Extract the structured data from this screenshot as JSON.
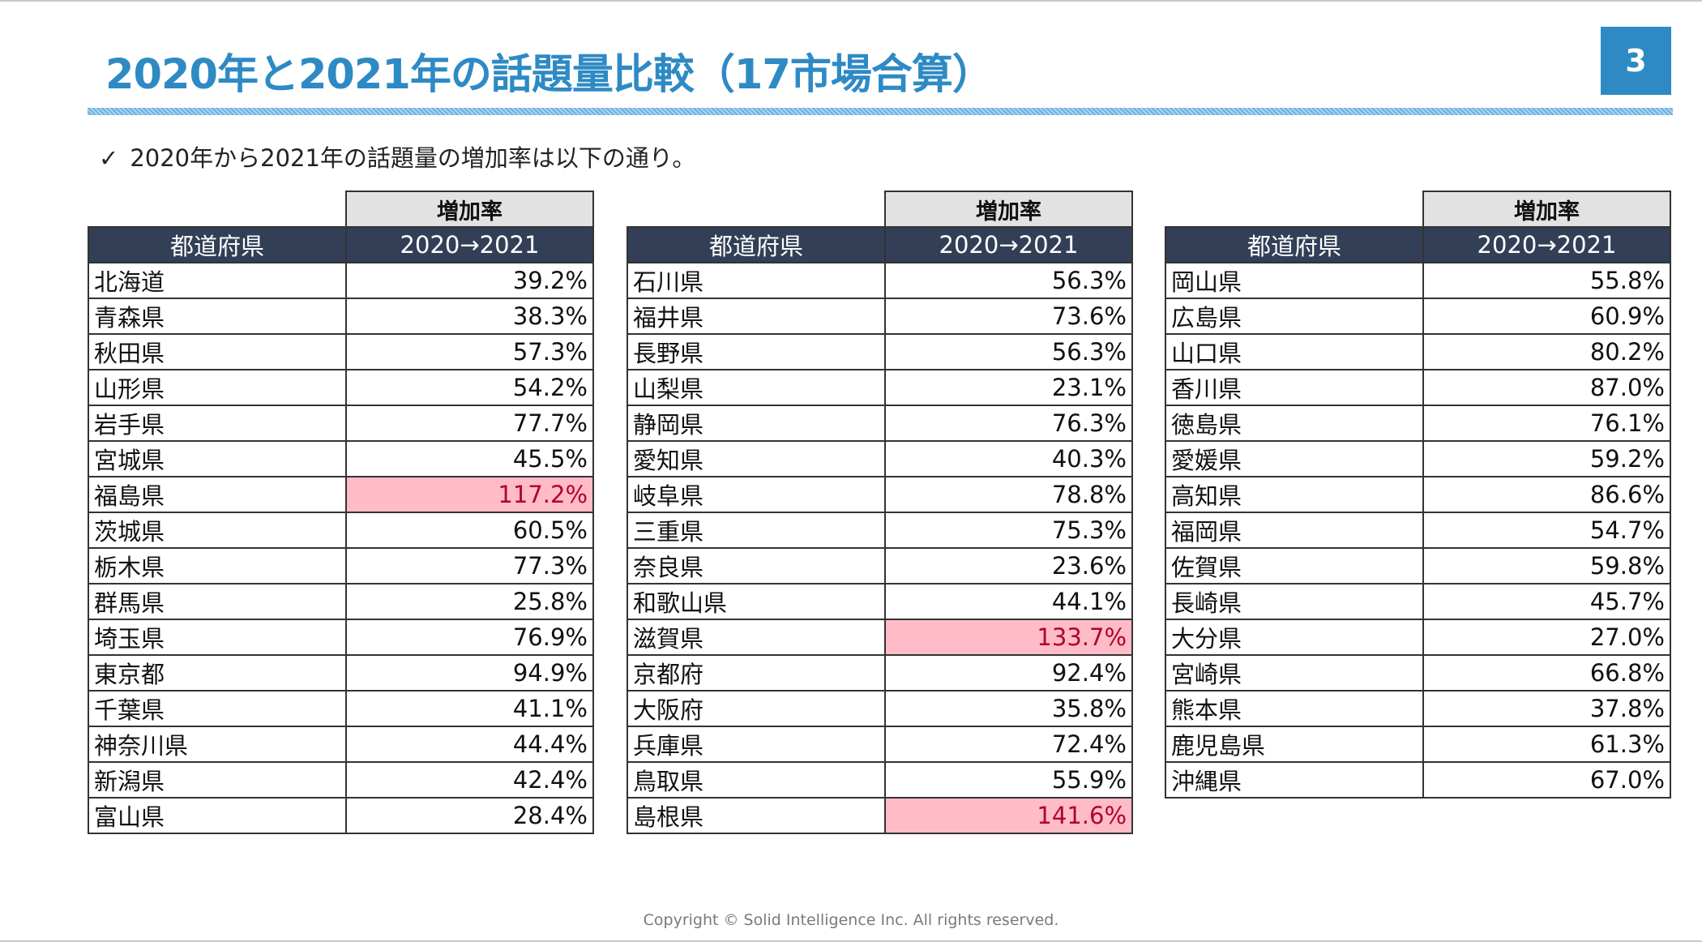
{
  "title": "2020年と2021年の話題量比較（17市場合算）",
  "page_number": "3",
  "bullet": {
    "check": "✓",
    "text": "2020年から2021年の話題量の増加率は以下の通り。"
  },
  "table_header": {
    "group": "増加率",
    "col_pref": "都道府県",
    "col_period": "2020→2021"
  },
  "colors": {
    "accent": "#2e8ac4",
    "header_bg": "#323f56",
    "highlight_bg": "#ffbcc8",
    "highlight_text": "#b0002a"
  },
  "tables": [
    {
      "rows": [
        {
          "pref": "北海道",
          "rate": "39.2%",
          "highlight": false
        },
        {
          "pref": "青森県",
          "rate": "38.3%",
          "highlight": false
        },
        {
          "pref": "秋田県",
          "rate": "57.3%",
          "highlight": false
        },
        {
          "pref": "山形県",
          "rate": "54.2%",
          "highlight": false
        },
        {
          "pref": "岩手県",
          "rate": "77.7%",
          "highlight": false
        },
        {
          "pref": "宮城県",
          "rate": "45.5%",
          "highlight": false
        },
        {
          "pref": "福島県",
          "rate": "117.2%",
          "highlight": true
        },
        {
          "pref": "茨城県",
          "rate": "60.5%",
          "highlight": false
        },
        {
          "pref": "栃木県",
          "rate": "77.3%",
          "highlight": false
        },
        {
          "pref": "群馬県",
          "rate": "25.8%",
          "highlight": false
        },
        {
          "pref": "埼玉県",
          "rate": "76.9%",
          "highlight": false
        },
        {
          "pref": "東京都",
          "rate": "94.9%",
          "highlight": false
        },
        {
          "pref": "千葉県",
          "rate": "41.1%",
          "highlight": false
        },
        {
          "pref": "神奈川県",
          "rate": "44.4%",
          "highlight": false
        },
        {
          "pref": "新潟県",
          "rate": "42.4%",
          "highlight": false
        },
        {
          "pref": "富山県",
          "rate": "28.4%",
          "highlight": false
        }
      ]
    },
    {
      "rows": [
        {
          "pref": "石川県",
          "rate": "56.3%",
          "highlight": false
        },
        {
          "pref": "福井県",
          "rate": "73.6%",
          "highlight": false
        },
        {
          "pref": "長野県",
          "rate": "56.3%",
          "highlight": false
        },
        {
          "pref": "山梨県",
          "rate": "23.1%",
          "highlight": false
        },
        {
          "pref": "静岡県",
          "rate": "76.3%",
          "highlight": false
        },
        {
          "pref": "愛知県",
          "rate": "40.3%",
          "highlight": false
        },
        {
          "pref": "岐阜県",
          "rate": "78.8%",
          "highlight": false
        },
        {
          "pref": "三重県",
          "rate": "75.3%",
          "highlight": false
        },
        {
          "pref": "奈良県",
          "rate": "23.6%",
          "highlight": false
        },
        {
          "pref": "和歌山県",
          "rate": "44.1%",
          "highlight": false
        },
        {
          "pref": "滋賀県",
          "rate": "133.7%",
          "highlight": true
        },
        {
          "pref": "京都府",
          "rate": "92.4%",
          "highlight": false
        },
        {
          "pref": "大阪府",
          "rate": "35.8%",
          "highlight": false
        },
        {
          "pref": "兵庫県",
          "rate": "72.4%",
          "highlight": false
        },
        {
          "pref": "鳥取県",
          "rate": "55.9%",
          "highlight": false
        },
        {
          "pref": "島根県",
          "rate": "141.6%",
          "highlight": true
        }
      ]
    },
    {
      "rows": [
        {
          "pref": "岡山県",
          "rate": "55.8%",
          "highlight": false
        },
        {
          "pref": "広島県",
          "rate": "60.9%",
          "highlight": false
        },
        {
          "pref": "山口県",
          "rate": "80.2%",
          "highlight": false
        },
        {
          "pref": "香川県",
          "rate": "87.0%",
          "highlight": false
        },
        {
          "pref": "徳島県",
          "rate": "76.1%",
          "highlight": false
        },
        {
          "pref": "愛媛県",
          "rate": "59.2%",
          "highlight": false
        },
        {
          "pref": "高知県",
          "rate": "86.6%",
          "highlight": false
        },
        {
          "pref": "福岡県",
          "rate": "54.7%",
          "highlight": false
        },
        {
          "pref": "佐賀県",
          "rate": "59.8%",
          "highlight": false
        },
        {
          "pref": "長崎県",
          "rate": "45.7%",
          "highlight": false
        },
        {
          "pref": "大分県",
          "rate": "27.0%",
          "highlight": false
        },
        {
          "pref": "宮崎県",
          "rate": "66.8%",
          "highlight": false
        },
        {
          "pref": "熊本県",
          "rate": "37.8%",
          "highlight": false
        },
        {
          "pref": "鹿児島県",
          "rate": "61.3%",
          "highlight": false
        },
        {
          "pref": "沖縄県",
          "rate": "67.0%",
          "highlight": false
        }
      ]
    }
  ],
  "footer": "Copyright © Solid Intelligence Inc. All rights reserved."
}
